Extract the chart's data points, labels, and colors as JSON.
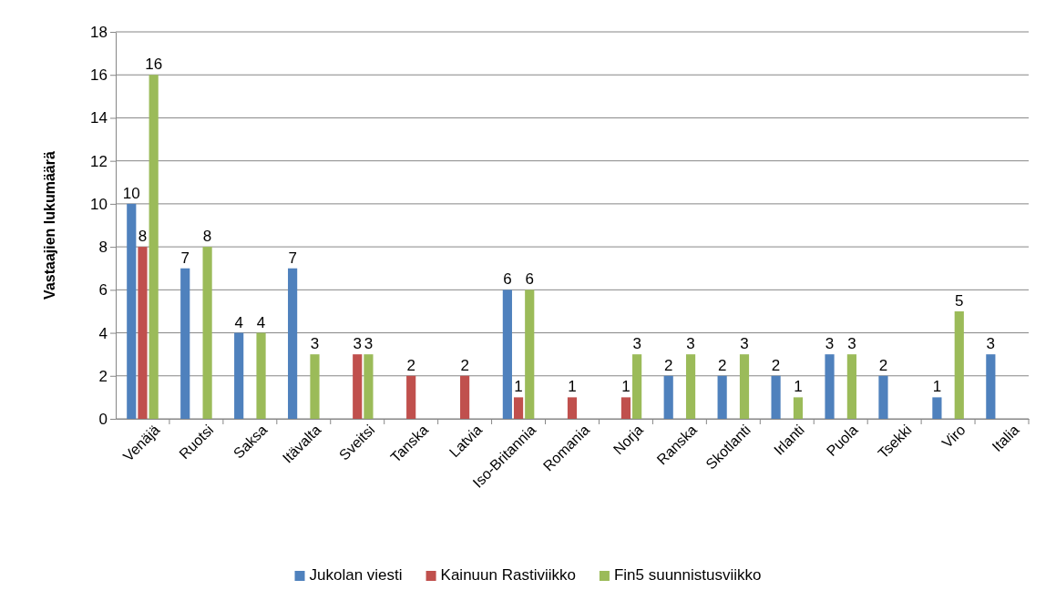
{
  "chart_data": {
    "type": "bar",
    "ylabel": "Vastaajien lukumäärä",
    "categories": [
      "Venäjä",
      "Ruotsi",
      "Saksa",
      "Itävalta",
      "Sveitsi",
      "Tanska",
      "Latvia",
      "Iso-Britannia",
      "Romania",
      "Norja",
      "Ranska",
      "Skotlanti",
      "Irlanti",
      "Puola",
      "Tsekki",
      "Viro",
      "Italia"
    ],
    "series": [
      {
        "name": "Jukolan viesti",
        "color": "#4f81bd",
        "values": [
          10,
          7,
          4,
          7,
          null,
          null,
          null,
          6,
          null,
          null,
          2,
          2,
          2,
          3,
          2,
          1,
          3
        ]
      },
      {
        "name": "Kainuun Rastiviikko",
        "color": "#c0504d",
        "values": [
          8,
          null,
          null,
          null,
          3,
          2,
          2,
          1,
          1,
          1,
          null,
          null,
          null,
          null,
          null,
          null,
          null
        ]
      },
      {
        "name": "Fin5 suunnistusviikko",
        "color": "#9bbb59",
        "values": [
          16,
          8,
          4,
          3,
          3,
          null,
          null,
          6,
          null,
          3,
          3,
          3,
          1,
          3,
          null,
          5,
          null
        ]
      }
    ],
    "ylim": [
      0,
      18
    ],
    "yticks": [
      0,
      2,
      4,
      6,
      8,
      10,
      12,
      14,
      16,
      18
    ],
    "grid": "y",
    "data_labels": true,
    "legend": "bottom"
  }
}
